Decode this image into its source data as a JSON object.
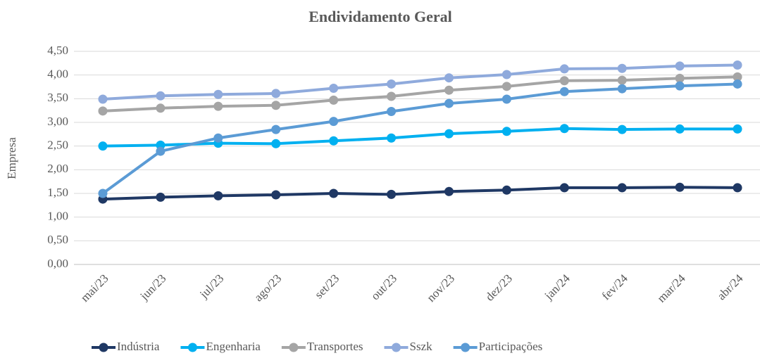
{
  "chart_data": {
    "type": "line",
    "title": "Endividamento Geral",
    "y_label": "Empresa",
    "categories": [
      "mai/23",
      "jun/23",
      "jul/23",
      "ago/23",
      "set/23",
      "out/23",
      "nov/23",
      "dez/23",
      "jan/24",
      "fev/24",
      "mar/24",
      "abr/24"
    ],
    "series": [
      {
        "name": "Indústria",
        "color": "#1f3864",
        "values": [
          1.38,
          1.42,
          1.45,
          1.47,
          1.5,
          1.48,
          1.54,
          1.57,
          1.62,
          1.62,
          1.63,
          1.62
        ]
      },
      {
        "name": "Engenharia",
        "color": "#00b0f0",
        "values": [
          2.5,
          2.52,
          2.56,
          2.55,
          2.61,
          2.67,
          2.76,
          2.81,
          2.87,
          2.85,
          2.86,
          2.86
        ]
      },
      {
        "name": "Transportes",
        "color": "#a5a5a5",
        "values": [
          3.24,
          3.3,
          3.34,
          3.36,
          3.47,
          3.55,
          3.68,
          3.76,
          3.88,
          3.89,
          3.93,
          3.96
        ]
      },
      {
        "name": "Sszk",
        "color": "#8faadc",
        "values": [
          3.49,
          3.56,
          3.59,
          3.61,
          3.72,
          3.81,
          3.94,
          4.01,
          4.13,
          4.14,
          4.19,
          4.21
        ]
      },
      {
        "name": "Participações",
        "color": "#5b9bd5",
        "values": [
          1.5,
          2.39,
          2.67,
          2.85,
          3.02,
          3.23,
          3.4,
          3.49,
          3.65,
          3.71,
          3.77,
          3.81
        ]
      }
    ],
    "ylim": [
      0,
      4.5
    ],
    "yticks": [
      {
        "value": 0,
        "label": "0,00"
      },
      {
        "value": 0.5,
        "label": "0,50"
      },
      {
        "value": 1,
        "label": "1,00"
      },
      {
        "value": 1.5,
        "label": "1,50"
      },
      {
        "value": 2,
        "label": "2,00"
      },
      {
        "value": 2.5,
        "label": "2,50"
      },
      {
        "value": 3,
        "label": "3,00"
      },
      {
        "value": 3.5,
        "label": "3,50"
      },
      {
        "value": 4,
        "label": "4,00"
      },
      {
        "value": 4.5,
        "label": "4,50"
      }
    ],
    "grid": true,
    "legend": "bottom"
  }
}
